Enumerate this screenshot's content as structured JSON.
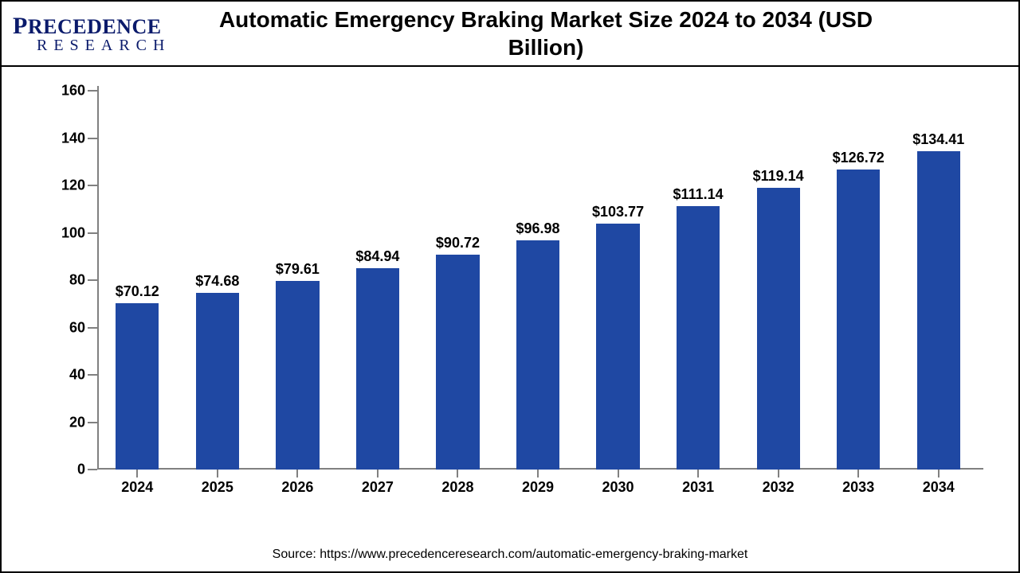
{
  "logo": {
    "line1_prefix": "P",
    "line1_rest": "RECEDENCE",
    "line2": "RESEARCH",
    "color": "#0a1a6b"
  },
  "title": "Automatic Emergency Braking Market Size 2024 to 2034 (USD Billion)",
  "title_fontsize": 28,
  "source": "Source: https://www.precedenceresearch.com/automatic-emergency-braking-market",
  "source_fontsize": 16,
  "chart": {
    "type": "bar",
    "categories": [
      "2024",
      "2025",
      "2026",
      "2027",
      "2028",
      "2029",
      "2030",
      "2031",
      "2032",
      "2033",
      "2034"
    ],
    "values": [
      70.12,
      74.68,
      79.61,
      84.94,
      90.72,
      96.98,
      103.77,
      111.14,
      119.14,
      126.72,
      134.41
    ],
    "value_prefix": "$",
    "bar_color": "#1f48a3",
    "background_color": "#ffffff",
    "axis_color": "#808080",
    "ylim": [
      0,
      160
    ],
    "ytick_step": 20,
    "label_fontsize": 18,
    "label_fontweight": "bold",
    "bar_width_ratio": 0.54
  }
}
